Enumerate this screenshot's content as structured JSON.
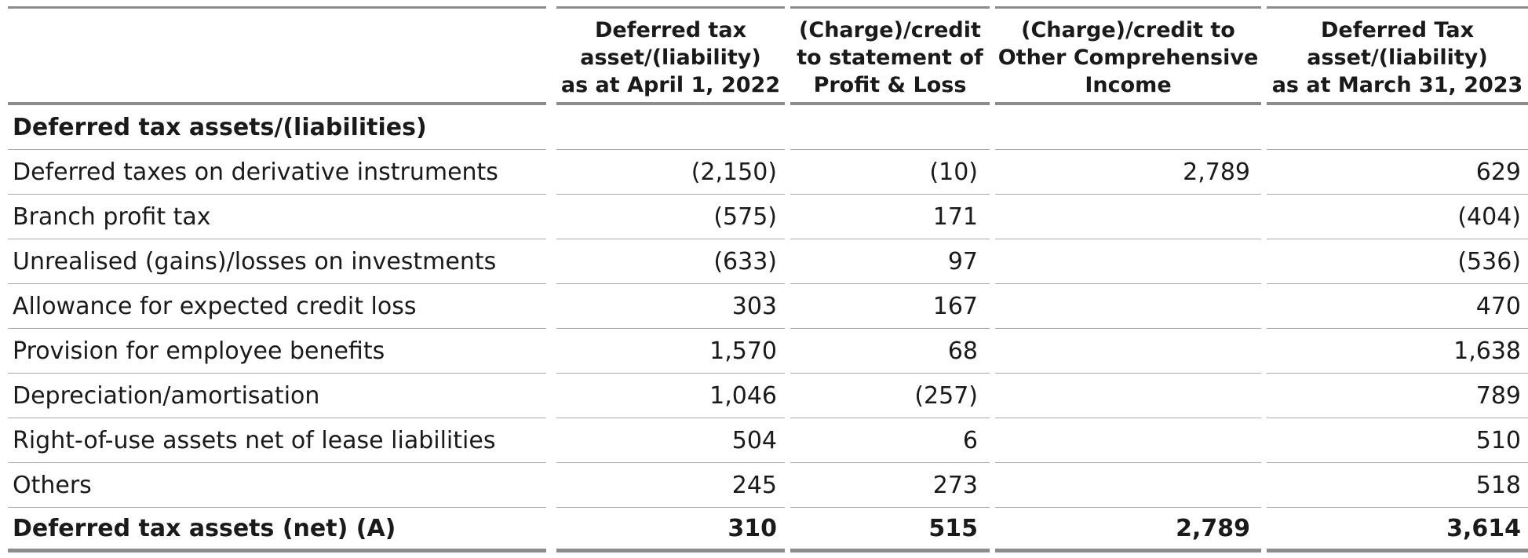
{
  "table": {
    "headers": [
      "",
      "Deferred tax\nasset/(liability)\nas at April 1, 2022",
      "(Charge)/credit\nto statement of\nProfit & Loss",
      "(Charge)/credit to\nOther Comprehensive\nIncome",
      "Deferred Tax\nasset/(liability)\nas at March 31, 2023"
    ],
    "section_title": "Deferred tax assets/(liabilities)",
    "rows": [
      {
        "label": "Deferred taxes on derivative instruments",
        "opening": "(2,150)",
        "pl": "(10)",
        "oci": "2,789",
        "closing": "629"
      },
      {
        "label": "Branch profit tax",
        "opening": "(575)",
        "pl": "171",
        "oci": "",
        "closing": "(404)"
      },
      {
        "label": "Unrealised (gains)/losses on investments",
        "opening": "(633)",
        "pl": "97",
        "oci": "",
        "closing": "(536)"
      },
      {
        "label": "Allowance for expected credit loss",
        "opening": "303",
        "pl": "167",
        "oci": "",
        "closing": "470"
      },
      {
        "label": "Provision for employee benefits",
        "opening": "1,570",
        "pl": "68",
        "oci": "",
        "closing": "1,638"
      },
      {
        "label": "Depreciation/amortisation",
        "opening": "1,046",
        "pl": "(257)",
        "oci": "",
        "closing": "789"
      },
      {
        "label": "Right-of-use assets net of lease liabilities",
        "opening": "504",
        "pl": "6",
        "oci": "",
        "closing": "510"
      },
      {
        "label": "Others",
        "opening": "245",
        "pl": "273",
        "oci": "",
        "closing": "518"
      }
    ],
    "total": {
      "label": "Deferred tax assets (net) (A)",
      "opening": "310",
      "pl": "515",
      "oci": "2,789",
      "closing": "3,614"
    }
  }
}
